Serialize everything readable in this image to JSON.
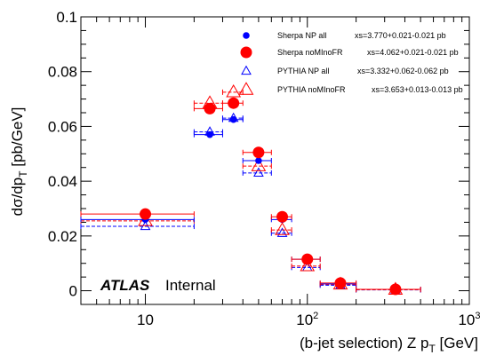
{
  "chart_data": {
    "type": "scatter",
    "xscale": "log",
    "xlim": [
      4,
      1000
    ],
    "ylim": [
      -0.005,
      0.1
    ],
    "xlabel": "(b-jet selection) Z p_T [GeV]",
    "ylabel": "dσ/dp_T [pb/GeV]",
    "x_ticks": [
      10,
      100,
      1000
    ],
    "x_tick_labels": [
      {
        "base": "10",
        "exp": ""
      },
      {
        "base": "10",
        "exp": "2"
      },
      {
        "base": "10",
        "exp": "3"
      }
    ],
    "y_ticks": [
      0,
      0.02,
      0.04,
      0.06,
      0.08,
      0.1
    ],
    "y_tick_labels": [
      "0",
      "0.02",
      "0.04",
      "0.06",
      "0.08",
      "0.1"
    ],
    "bins": [
      [
        0,
        20
      ],
      [
        20,
        30
      ],
      [
        30,
        40
      ],
      [
        40,
        60
      ],
      [
        60,
        80
      ],
      [
        80,
        120
      ],
      [
        120,
        200
      ],
      [
        200,
        500
      ]
    ],
    "series": [
      {
        "name": "Sherpa NP all",
        "xs": "xs=3.770+0.021-0.021 pb",
        "color": "#0000ff",
        "marker": "circle-small",
        "x": [
          10,
          25,
          35,
          50,
          70,
          100,
          160,
          350
        ],
        "y": [
          0.026,
          0.057,
          0.0625,
          0.0475,
          0.026,
          0.0115,
          0.0025,
          0.0005
        ]
      },
      {
        "name": "Sherpa noMInoFR",
        "xs": "xs=4.062+0.021-0.021 pb",
        "color": "#ff0000",
        "marker": "circle-large",
        "x": [
          10,
          25,
          35,
          50,
          70,
          100,
          160,
          350
        ],
        "y": [
          0.028,
          0.0665,
          0.0685,
          0.0505,
          0.027,
          0.0115,
          0.0028,
          0.0005
        ]
      },
      {
        "name": "PYTHIA NP all",
        "xs": "xs=3.332+0.062-0.062 pb",
        "color": "#0000ff",
        "marker": "triangle-small",
        "x": [
          10,
          25,
          35,
          50,
          70,
          100,
          160,
          350
        ],
        "y": [
          0.0235,
          0.058,
          0.063,
          0.043,
          0.021,
          0.0085,
          0.002,
          0.0003
        ]
      },
      {
        "name": "PYTHIA noMInoFR",
        "xs": "xs=3.653+0.013-0.013 pb",
        "color": "#ff0000",
        "marker": "triangle-large",
        "x": [
          10,
          25,
          35,
          50,
          70,
          100,
          160,
          350
        ],
        "y": [
          0.0255,
          0.0685,
          0.0725,
          0.0455,
          0.0222,
          0.009,
          0.0023,
          0.0004
        ]
      }
    ],
    "annotations": [
      {
        "text": "ATLAS",
        "style": "bold-italic"
      },
      {
        "text": "Internal",
        "style": "normal"
      }
    ]
  }
}
